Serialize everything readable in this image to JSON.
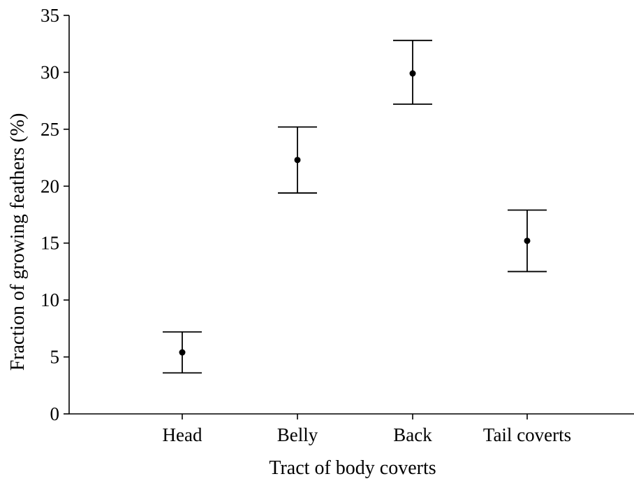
{
  "chart_data": {
    "type": "scatter",
    "title": "",
    "xlabel": "Tract of body coverts",
    "ylabel": "Fraction of growing feathers (%)",
    "ylim": [
      0,
      35
    ],
    "yticks": [
      0,
      5,
      10,
      15,
      20,
      25,
      30,
      35
    ],
    "grid": false,
    "categories": [
      "Head",
      "Belly",
      "Back",
      "Tail coverts"
    ],
    "series": [
      {
        "values": [
          5.4,
          22.3,
          29.9,
          15.2
        ],
        "error_low": [
          3.6,
          19.4,
          27.2,
          12.5
        ],
        "error_high": [
          7.2,
          25.2,
          32.8,
          17.9
        ]
      }
    ]
  }
}
